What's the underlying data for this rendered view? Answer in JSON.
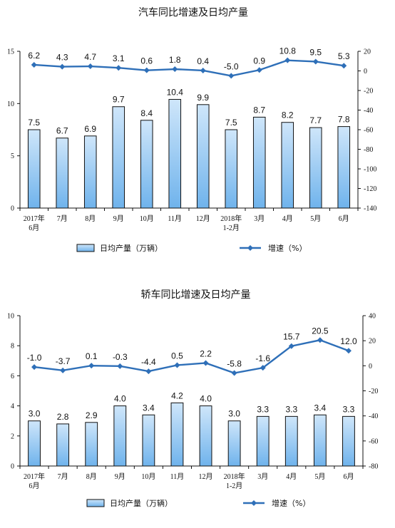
{
  "chart_data": [
    {
      "type": "bar",
      "title": "汽车同比增速及日均产量",
      "categories": [
        [
          "2017年",
          "6月"
        ],
        [
          "7月"
        ],
        [
          "8月"
        ],
        [
          "9月"
        ],
        [
          "10月"
        ],
        [
          "11月"
        ],
        [
          "12月"
        ],
        [
          "2018年",
          "1-2月"
        ],
        [
          "3月"
        ],
        [
          "4月"
        ],
        [
          "5月"
        ],
        [
          "6月"
        ]
      ],
      "series": [
        {
          "name": "日均产量（万辆）",
          "type": "bar",
          "axis": "left",
          "values": [
            7.5,
            6.7,
            6.9,
            9.7,
            8.4,
            10.4,
            9.9,
            7.5,
            8.7,
            8.2,
            7.7,
            7.8
          ],
          "labels": [
            "7.5",
            "6.7",
            "6.9",
            "9.7",
            "8.4",
            "10.4",
            "9.9",
            "7.5",
            "8.7",
            "8.2",
            "7.7",
            "7.8"
          ]
        },
        {
          "name": "增速（%）",
          "type": "line",
          "axis": "right",
          "values": [
            6.2,
            4.3,
            4.7,
            3.1,
            0.6,
            1.8,
            0.4,
            -5.0,
            0.9,
            10.8,
            9.5,
            5.3
          ],
          "labels": [
            "6.2",
            "4.3",
            "4.7",
            "3.1",
            "0.6",
            "1.8",
            "0.4",
            "-5.0",
            "0.9",
            "10.8",
            "9.5",
            "5.3"
          ]
        }
      ],
      "left_axis": {
        "ylim": [
          0,
          15
        ],
        "ticks": [
          0,
          5,
          10,
          15
        ]
      },
      "right_axis": {
        "ylim": [
          -140,
          20
        ],
        "ticks": [
          20,
          0,
          -20,
          -40,
          -60,
          -80,
          -100,
          -120,
          -140
        ]
      },
      "grid": false,
      "legend_position": "bottom",
      "colors": {
        "bar_fill_top": "#cfe6fa",
        "bar_fill_bottom": "#6fb3ec",
        "bar_stroke": "#111111",
        "line": "#2e6fb8"
      }
    },
    {
      "type": "bar",
      "title": "轿车同比增速及日均产量",
      "categories": [
        [
          "2017年",
          "6月"
        ],
        [
          "7月"
        ],
        [
          "8月"
        ],
        [
          "9月"
        ],
        [
          "10月"
        ],
        [
          "11月"
        ],
        [
          "12月"
        ],
        [
          "2018年",
          "1-2月"
        ],
        [
          "3月"
        ],
        [
          "4月"
        ],
        [
          "5月"
        ],
        [
          "6月"
        ]
      ],
      "series": [
        {
          "name": "日均产量（万辆）",
          "type": "bar",
          "axis": "left",
          "values": [
            3.0,
            2.8,
            2.9,
            4.0,
            3.4,
            4.2,
            4.0,
            3.0,
            3.3,
            3.3,
            3.4,
            3.3
          ],
          "labels": [
            "3.0",
            "2.8",
            "2.9",
            "4.0",
            "3.4",
            "4.2",
            "4.0",
            "3.0",
            "3.3",
            "3.3",
            "3.4",
            "3.3"
          ]
        },
        {
          "name": "增速（%）",
          "type": "line",
          "axis": "right",
          "values": [
            -1.0,
            -3.7,
            0.1,
            -0.3,
            -4.4,
            0.5,
            2.2,
            -5.8,
            -1.6,
            15.7,
            20.5,
            12.0
          ],
          "labels": [
            "-1.0",
            "-3.7",
            "0.1",
            "-0.3",
            "-4.4",
            "0.5",
            "2.2",
            "-5.8",
            "-1.6",
            "15.7",
            "20.5",
            "12.0"
          ]
        }
      ],
      "left_axis": {
        "ylim": [
          0,
          10
        ],
        "ticks": [
          0,
          2,
          4,
          6,
          8,
          10
        ]
      },
      "right_axis": {
        "ylim": [
          -80,
          40
        ],
        "ticks": [
          40,
          20,
          0,
          -20,
          -40,
          -60,
          -80
        ]
      },
      "grid": false,
      "legend_position": "bottom",
      "colors": {
        "bar_fill_top": "#cfe6fa",
        "bar_fill_bottom": "#6fb3ec",
        "bar_stroke": "#111111",
        "line": "#2e6fb8"
      }
    }
  ]
}
